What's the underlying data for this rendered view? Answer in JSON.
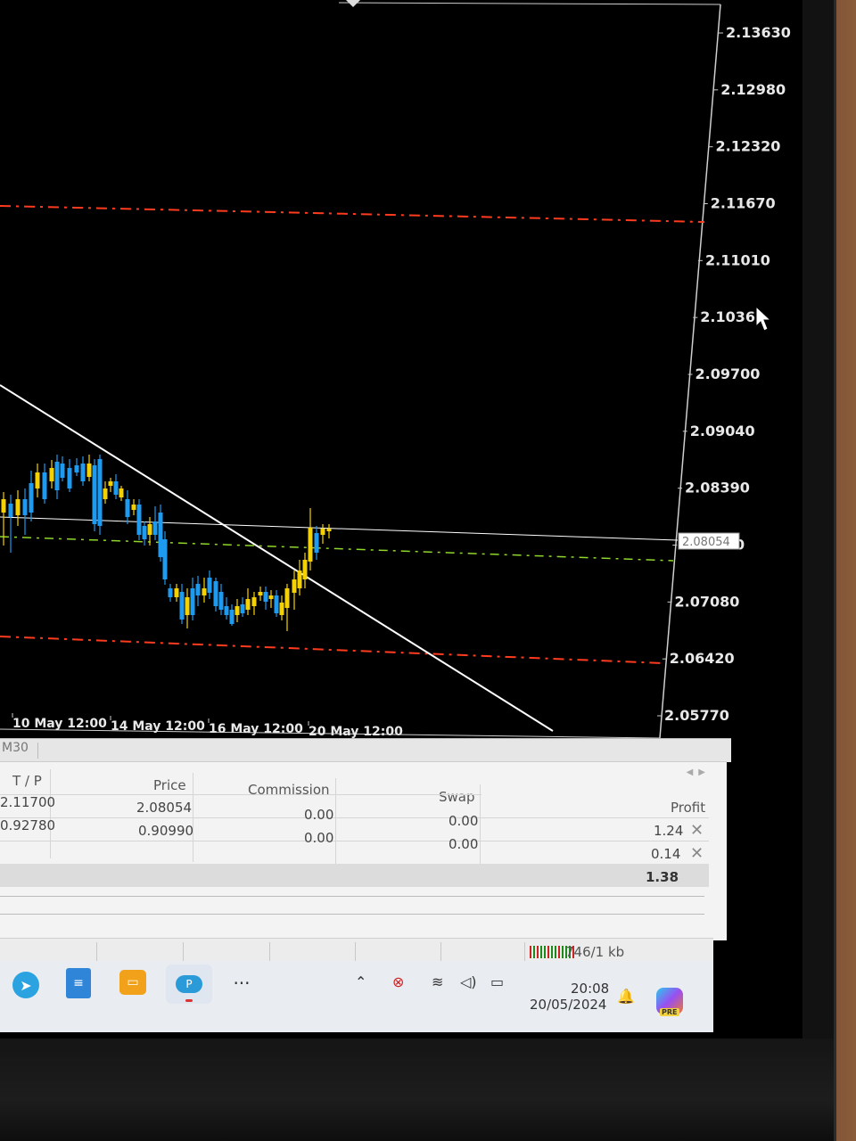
{
  "chart": {
    "price_axis": [
      "2.13630",
      "2.12980",
      "2.12320",
      "2.11670",
      "2.11010",
      "2.10360",
      "2.09700",
      "2.09040",
      "2.08390",
      "2.08054",
      "2.07730",
      "2.07080",
      "2.06420",
      "2.05770"
    ],
    "current_price": "2.08054",
    "time_axis": [
      "10 May 12:00",
      "14 May 12:00",
      "16 May 12:00",
      "20 May 12:00"
    ],
    "colors": {
      "background": "#000000",
      "bull_candle": "#f5d100",
      "bear_candle": "#1e9bf0",
      "tp_sl_line": "#ff3b1f",
      "entry_line": "#8fd72a",
      "trendline": "#ffffff",
      "axis_text": "#e8e8e8"
    }
  },
  "chart_data": {
    "type": "candlestick",
    "y_levels": [
      2.1363,
      2.1298,
      2.1232,
      2.1167,
      2.1101,
      2.1036,
      2.097,
      2.0904,
      2.0839,
      2.0773,
      2.0708,
      2.0642,
      2.0577
    ],
    "lines": [
      {
        "value": 2.1167,
        "style": "dash-dot",
        "color": "#ff3b1f"
      },
      {
        "value": 2.0642,
        "style": "dash-dot",
        "color": "#ff3b1f"
      },
      {
        "value": 2.0773,
        "style": "dash-dot",
        "color": "#8fd72a"
      },
      {
        "value": 2.08054,
        "style": "solid",
        "color": "#ffffff"
      }
    ],
    "x_ticks": [
      "10 May 12:00",
      "14 May 12:00",
      "16 May 12:00",
      "20 May 12:00"
    ]
  },
  "tabs": {
    "timeframe": "M30"
  },
  "trades": {
    "headers": {
      "tp": "T / P",
      "price": "Price",
      "commission": "Commission",
      "swap": "Swap",
      "profit": "Profit"
    },
    "rows": [
      {
        "tp": "2.11700",
        "price": "2.08054",
        "commission": "0.00",
        "swap": "0.00",
        "profit": "1.24"
      },
      {
        "tp": "0.92780",
        "price": "0.90990",
        "commission": "0.00",
        "swap": "0.00",
        "profit": "0.14"
      }
    ],
    "total": "1.38"
  },
  "status": {
    "connection": "746/1 kb"
  },
  "taskbar": {
    "time": "20:08",
    "date": "20/05/2024",
    "more_label": "···",
    "icons": [
      "telegram-icon",
      "notes-icon",
      "wallet-icon",
      "pcloud-icon"
    ],
    "badge": "PRE"
  }
}
